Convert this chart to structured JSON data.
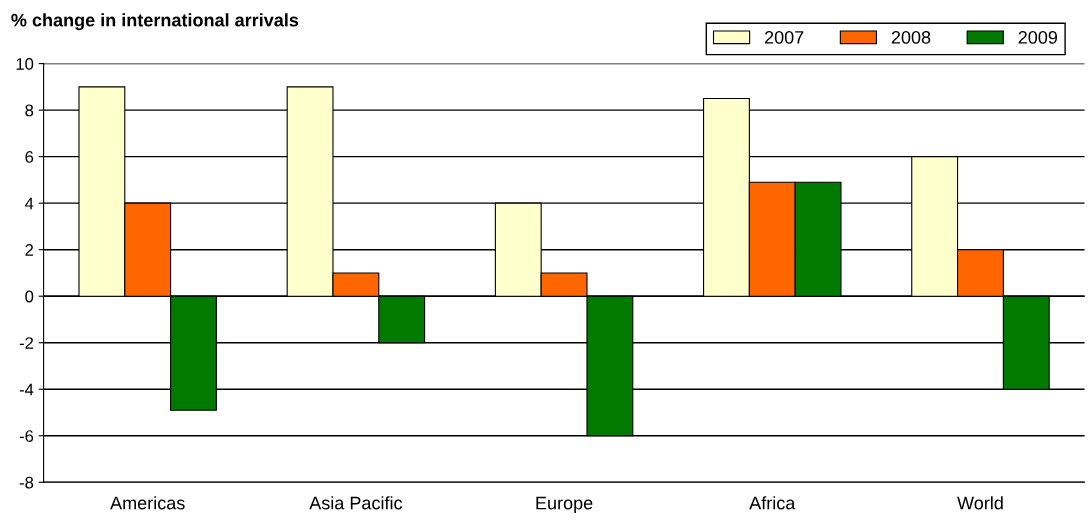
{
  "chart_data": {
    "type": "bar",
    "title": "% change in international arrivals",
    "categories": [
      "Americas",
      "Asia Pacific",
      "Europe",
      "Africa",
      "World"
    ],
    "series": [
      {
        "name": "2007",
        "color": "#ffffcc",
        "values": [
          9,
          9,
          4,
          8.5,
          6
        ]
      },
      {
        "name": "2008",
        "color": "#ff6600",
        "values": [
          4,
          1,
          1,
          4.9,
          2
        ]
      },
      {
        "name": "2009",
        "color": "#007a00",
        "values": [
          -4.9,
          -2,
          -6,
          4.9,
          -4
        ]
      }
    ],
    "ylim": [
      -8,
      10
    ],
    "yticks": [
      -8,
      -6,
      -4,
      -2,
      0,
      2,
      4,
      6,
      8,
      10
    ],
    "grid": "y",
    "legend": "top right"
  }
}
